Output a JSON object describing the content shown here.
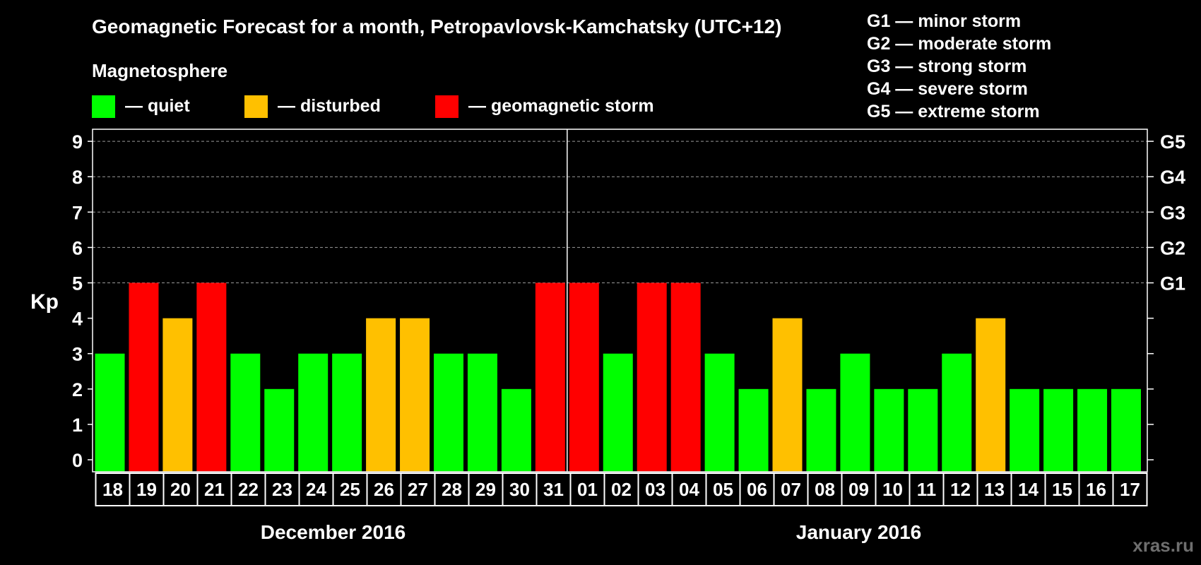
{
  "chart_data": {
    "type": "bar",
    "title": "Geomagnetic Forecast for a month, Petropavlovsk-Kamchatsky (UTC+12)",
    "ylabel": "Kp",
    "ylim": [
      0,
      9
    ],
    "yticks": [
      "0",
      "1",
      "2",
      "3",
      "4",
      "5",
      "6",
      "7",
      "8",
      "9"
    ],
    "storm_levels": [
      {
        "kp": 5,
        "label": "G1"
      },
      {
        "kp": 6,
        "label": "G2"
      },
      {
        "kp": 7,
        "label": "G3"
      },
      {
        "kp": 8,
        "label": "G4"
      },
      {
        "kp": 9,
        "label": "G5"
      }
    ],
    "storm_legend": [
      "G1 — minor storm",
      "G2 — moderate storm",
      "G3 — strong storm",
      "G4 — severe storm",
      "G5 — extreme storm"
    ],
    "legend_title": "Magnetosphere",
    "legend": [
      {
        "label": "— quiet",
        "color": "#00ff00"
      },
      {
        "label": "— disturbed",
        "color": "#ffc000"
      },
      {
        "label": "— geomagnetic storm",
        "color": "#ff0000"
      }
    ],
    "categories": [
      "18",
      "19",
      "20",
      "21",
      "22",
      "23",
      "24",
      "25",
      "26",
      "27",
      "28",
      "29",
      "30",
      "31",
      "01",
      "02",
      "03",
      "04",
      "05",
      "06",
      "07",
      "08",
      "09",
      "10",
      "11",
      "12",
      "13",
      "14",
      "15",
      "16",
      "17"
    ],
    "values": [
      3,
      5,
      4,
      5,
      3,
      2,
      3,
      3,
      4,
      4,
      3,
      3,
      2,
      5,
      5,
      3,
      5,
      5,
      3,
      2,
      4,
      2,
      3,
      2,
      2,
      3,
      4,
      2,
      2,
      2,
      2
    ],
    "months": [
      {
        "label": "December 2016",
        "first_index": 0,
        "last_index": 13
      },
      {
        "label": "January 2016",
        "first_index": 14,
        "last_index": 30
      }
    ],
    "grid": true,
    "watermark": "xras.ru"
  }
}
